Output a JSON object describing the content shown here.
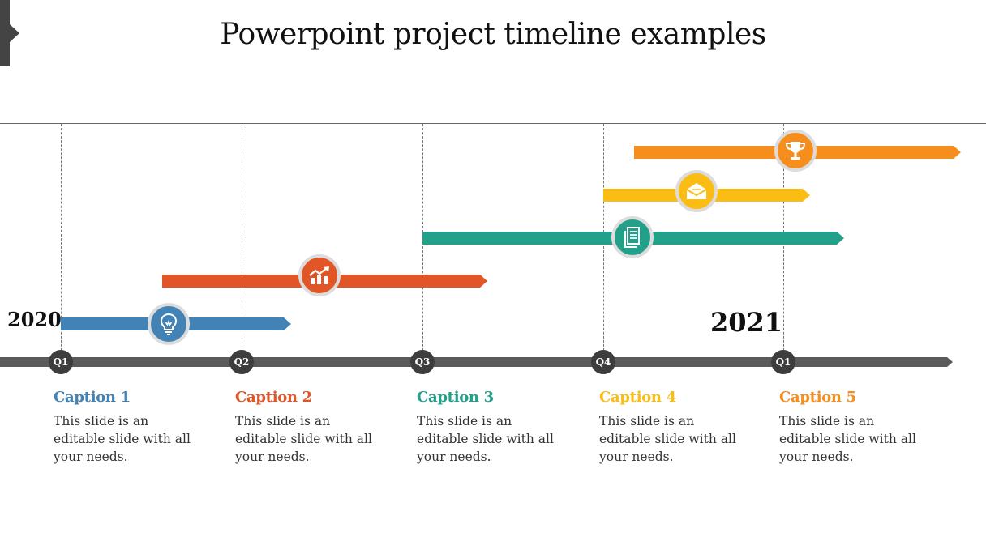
{
  "slide": {
    "title": "Powerpoint project timeline examples"
  },
  "timeline": {
    "year_start": "2020",
    "year_end": "2021",
    "quarters": [
      "Q1",
      "Q2",
      "Q3",
      "Q4",
      "Q1"
    ]
  },
  "bars": [
    {
      "color": "#4282b4",
      "icon": "lightbulb-icon"
    },
    {
      "color": "#e15526",
      "icon": "growth-chart-icon"
    },
    {
      "color": "#22a08a",
      "icon": "document-icon"
    },
    {
      "color": "#fbbd14",
      "icon": "envelope-icon"
    },
    {
      "color": "#f68e1e",
      "icon": "trophy-icon"
    }
  ],
  "captions": [
    {
      "title": "Caption 1",
      "body": "This slide is an editable slide with all your needs.",
      "color": "#4282b4"
    },
    {
      "title": "Caption 2",
      "body": "This slide is an editable slide with all your needs.",
      "color": "#e15526"
    },
    {
      "title": "Caption 3",
      "body": "This slide is an editable slide with all your needs.",
      "color": "#22a08a"
    },
    {
      "title": "Caption 4",
      "body": "This slide is an editable slide with all your needs.",
      "color": "#fbbd14"
    },
    {
      "title": "Caption 5",
      "body": "This slide is an editable slide with all your needs.",
      "color": "#f68e1e"
    }
  ]
}
